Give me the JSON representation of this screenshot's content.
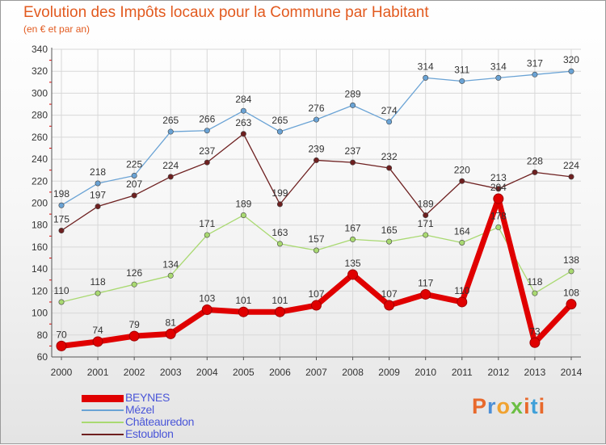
{
  "colors": {
    "title": "#e25a1f",
    "axis": "#333333",
    "grid": "#d8d8d8",
    "legend_text": "#4a56d8"
  },
  "logo": {
    "text": "Proxiti",
    "letter_colors": [
      "#e8692c",
      "#4d8fd6",
      "#f0a230",
      "#6cbf44",
      "#e8692c",
      "#3fa0d9",
      "#e8692c"
    ]
  },
  "chart_data": {
    "type": "line",
    "title": "Evolution des Impôts locaux pour la Commune par Habitant",
    "subtitle": "(en € et par an)",
    "x": [
      "2000",
      "2001",
      "2002",
      "2003",
      "2004",
      "2005",
      "2006",
      "2007",
      "2008",
      "2009",
      "2010",
      "2011",
      "2012",
      "2013",
      "2014"
    ],
    "ylim": [
      60,
      340
    ],
    "yticks": [
      60,
      80,
      100,
      120,
      140,
      160,
      180,
      200,
      220,
      240,
      260,
      280,
      300,
      320,
      340
    ],
    "grid": true,
    "legend_position": "bottom-left",
    "series": [
      {
        "name": "BEYNES",
        "color": "#e00000",
        "width": 7,
        "values": [
          70,
          74,
          79,
          81,
          103,
          101,
          101,
          107,
          135,
          107,
          117,
          110,
          204,
          73,
          108
        ]
      },
      {
        "name": "Mézel",
        "color": "#6aa3d5",
        "width": 1.3,
        "values": [
          198,
          218,
          225,
          265,
          266,
          284,
          265,
          276,
          289,
          274,
          314,
          311,
          314,
          317,
          320
        ]
      },
      {
        "name": "Châteauredon",
        "color": "#a9d971",
        "width": 1.3,
        "values": [
          110,
          118,
          126,
          134,
          171,
          189,
          163,
          157,
          167,
          165,
          171,
          164,
          178,
          118,
          138
        ]
      },
      {
        "name": "Estoublon",
        "color": "#6e2020",
        "width": 1.3,
        "values": [
          175,
          197,
          207,
          224,
          237,
          263,
          199,
          239,
          237,
          232,
          189,
          220,
          213,
          228,
          224
        ]
      }
    ]
  }
}
